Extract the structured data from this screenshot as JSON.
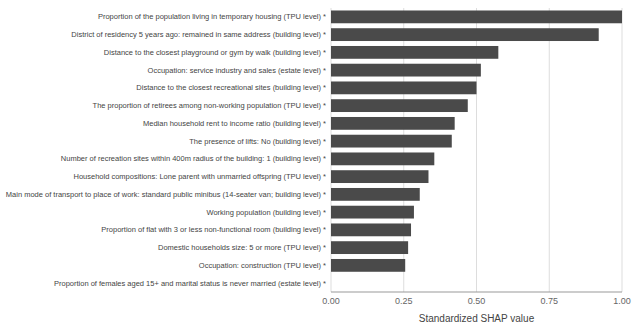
{
  "chart_data": {
    "type": "bar",
    "orientation": "horizontal",
    "categories": [
      "Proportion of females aged 15+ and marital status is never married (estate level) *",
      "Occupation: construction (TPU level) *",
      "Domestic households size: 5 or more (TPU level) *",
      "Proportion of flat with 3 or less non-functional room (building level) *",
      "Working population (building level) *",
      "Main mode of transport to place of work: standard public minibus (14-seater van; building level) *",
      "Household compositions: Lone parent with unmarried offspring (TPU level) *",
      "Number of recreation sites within 400m radius of the building: 1 (building level) *",
      "The presence of lifts: No (building level) *",
      "Median household rent to income ratio (building level) *",
      "The proportion of retirees among non-working population (TPU level) *",
      "Distance to the closest recreational sites (building level) *",
      "Occupation: service industry and sales (estate level) *",
      "Distance to the closest playground or gym by walk (building level) *",
      "District of residency 5 years ago: remained in same address (building level) *",
      "Proportion of the population living in temporary housing (TPU level) *"
    ],
    "values": [
      0.0,
      0.255,
      0.265,
      0.275,
      0.285,
      0.305,
      0.335,
      0.355,
      0.415,
      0.425,
      0.47,
      0.5,
      0.515,
      0.575,
      0.92,
      1.0
    ],
    "color": "#4a4a4a",
    "xlabel": "Standardized SHAP value",
    "xlim": [
      0.0,
      1.0
    ],
    "xticks": [
      {
        "value": 0.0,
        "label": "0.00"
      },
      {
        "value": 0.25,
        "label": "0.25"
      },
      {
        "value": 0.5,
        "label": "0.50"
      },
      {
        "value": 0.75,
        "label": "0.75"
      },
      {
        "value": 1.0,
        "label": "1.00"
      }
    ],
    "grid": true
  }
}
